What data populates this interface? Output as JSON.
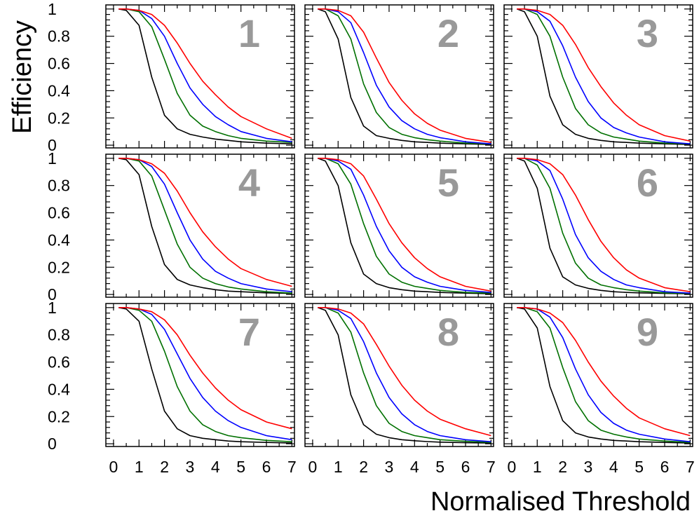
{
  "figure": {
    "ylabel": "Efficiency",
    "xlabel": "Normalised Threshold"
  },
  "style": {
    "series_colors": [
      "#000000",
      "#007000",
      "#0000ff",
      "#ff0000"
    ],
    "panel_number_color": "#999999",
    "axis_color": "#000000"
  },
  "chart_data": [
    {
      "type": "line",
      "panel_label": "1",
      "xlim": [
        -0.3,
        7.1
      ],
      "ylim": [
        -0.02,
        1.03
      ],
      "xticks": [
        0,
        1,
        2,
        3,
        4,
        5,
        6,
        7
      ],
      "yticks": [
        0,
        0.2,
        0.4,
        0.6,
        0.8,
        1
      ],
      "x": [
        0.2,
        0.5,
        1,
        1.5,
        2,
        2.5,
        3,
        3.5,
        4,
        4.5,
        5,
        6,
        7
      ],
      "series": [
        {
          "values": [
            1,
            0.99,
            0.88,
            0.5,
            0.22,
            0.12,
            0.08,
            0.06,
            0.045,
            0.035,
            0.025,
            0.015,
            0.01
          ]
        },
        {
          "values": [
            1,
            1,
            0.98,
            0.87,
            0.63,
            0.38,
            0.22,
            0.14,
            0.1,
            0.07,
            0.05,
            0.03,
            0.02
          ]
        },
        {
          "values": [
            1,
            1,
            0.99,
            0.93,
            0.8,
            0.6,
            0.42,
            0.3,
            0.21,
            0.15,
            0.1,
            0.05,
            0.025
          ]
        },
        {
          "values": [
            1,
            1,
            0.99,
            0.96,
            0.88,
            0.75,
            0.6,
            0.47,
            0.37,
            0.28,
            0.21,
            0.12,
            0.05
          ]
        }
      ]
    },
    {
      "type": "line",
      "panel_label": "2",
      "xlim": [
        -0.3,
        7.1
      ],
      "ylim": [
        -0.02,
        1.03
      ],
      "xticks": [
        0,
        1,
        2,
        3,
        4,
        5,
        6,
        7
      ],
      "yticks": [
        0,
        0.2,
        0.4,
        0.6,
        0.8,
        1
      ],
      "x": [
        0.2,
        0.5,
        1,
        1.5,
        2,
        2.5,
        3,
        3.5,
        4,
        4.5,
        5,
        6,
        7
      ],
      "series": [
        {
          "values": [
            1,
            0.98,
            0.78,
            0.35,
            0.14,
            0.07,
            0.05,
            0.035,
            0.025,
            0.02,
            0.015,
            0.01,
            0.005
          ]
        },
        {
          "values": [
            1,
            1,
            0.95,
            0.78,
            0.45,
            0.24,
            0.13,
            0.08,
            0.055,
            0.04,
            0.03,
            0.015,
            0.01
          ]
        },
        {
          "values": [
            1,
            1,
            0.98,
            0.9,
            0.68,
            0.44,
            0.28,
            0.18,
            0.12,
            0.08,
            0.055,
            0.025,
            0.01
          ]
        },
        {
          "values": [
            1,
            1,
            0.99,
            0.95,
            0.83,
            0.64,
            0.46,
            0.33,
            0.23,
            0.16,
            0.11,
            0.05,
            0.02
          ]
        }
      ]
    },
    {
      "type": "line",
      "panel_label": "3",
      "xlim": [
        -0.3,
        7.1
      ],
      "ylim": [
        -0.02,
        1.03
      ],
      "xticks": [
        0,
        1,
        2,
        3,
        4,
        5,
        6,
        7
      ],
      "yticks": [
        0,
        0.2,
        0.4,
        0.6,
        0.8,
        1
      ],
      "x": [
        0.2,
        0.5,
        1,
        1.5,
        2,
        2.5,
        3,
        3.5,
        4,
        4.5,
        5,
        6,
        7
      ],
      "series": [
        {
          "values": [
            1,
            0.98,
            0.8,
            0.36,
            0.15,
            0.08,
            0.05,
            0.035,
            0.025,
            0.02,
            0.015,
            0.01,
            0.005
          ]
        },
        {
          "values": [
            1,
            1,
            0.96,
            0.8,
            0.5,
            0.27,
            0.15,
            0.09,
            0.06,
            0.045,
            0.03,
            0.015,
            0.01
          ]
        },
        {
          "values": [
            1,
            1,
            0.98,
            0.91,
            0.73,
            0.5,
            0.32,
            0.2,
            0.13,
            0.09,
            0.06,
            0.025,
            0.01
          ]
        },
        {
          "values": [
            1,
            1,
            0.99,
            0.96,
            0.88,
            0.74,
            0.57,
            0.43,
            0.31,
            0.22,
            0.15,
            0.07,
            0.03
          ]
        }
      ]
    },
    {
      "type": "line",
      "panel_label": "4",
      "xlim": [
        -0.3,
        7.1
      ],
      "ylim": [
        -0.02,
        1.03
      ],
      "xticks": [
        0,
        1,
        2,
        3,
        4,
        5,
        6,
        7
      ],
      "yticks": [
        0,
        0.2,
        0.4,
        0.6,
        0.8,
        1
      ],
      "x": [
        0.2,
        0.5,
        1,
        1.5,
        2,
        2.5,
        3,
        3.5,
        4,
        4.5,
        5,
        6,
        7
      ],
      "series": [
        {
          "values": [
            1,
            0.99,
            0.88,
            0.5,
            0.22,
            0.11,
            0.07,
            0.05,
            0.035,
            0.025,
            0.02,
            0.012,
            0.008
          ]
        },
        {
          "values": [
            1,
            1,
            0.98,
            0.87,
            0.62,
            0.37,
            0.2,
            0.12,
            0.08,
            0.055,
            0.04,
            0.02,
            0.01
          ]
        },
        {
          "values": [
            1,
            1,
            0.99,
            0.94,
            0.81,
            0.6,
            0.4,
            0.26,
            0.17,
            0.12,
            0.08,
            0.04,
            0.02
          ]
        },
        {
          "values": [
            1,
            1,
            0.99,
            0.96,
            0.89,
            0.76,
            0.6,
            0.46,
            0.35,
            0.26,
            0.19,
            0.11,
            0.06
          ]
        }
      ]
    },
    {
      "type": "line",
      "panel_label": "5",
      "xlim": [
        -0.3,
        7.1
      ],
      "ylim": [
        -0.02,
        1.03
      ],
      "xticks": [
        0,
        1,
        2,
        3,
        4,
        5,
        6,
        7
      ],
      "yticks": [
        0,
        0.2,
        0.4,
        0.6,
        0.8,
        1
      ],
      "x": [
        0.2,
        0.5,
        1,
        1.5,
        2,
        2.5,
        3,
        3.5,
        4,
        4.5,
        5,
        6,
        7
      ],
      "series": [
        {
          "values": [
            1,
            0.98,
            0.8,
            0.38,
            0.15,
            0.08,
            0.05,
            0.035,
            0.025,
            0.02,
            0.015,
            0.01,
            0.005
          ]
        },
        {
          "values": [
            1,
            1,
            0.96,
            0.81,
            0.52,
            0.28,
            0.15,
            0.09,
            0.06,
            0.045,
            0.03,
            0.015,
            0.01
          ]
        },
        {
          "values": [
            1,
            1,
            0.98,
            0.92,
            0.73,
            0.5,
            0.32,
            0.2,
            0.13,
            0.09,
            0.06,
            0.03,
            0.015
          ]
        },
        {
          "values": [
            1,
            1,
            0.99,
            0.96,
            0.87,
            0.7,
            0.52,
            0.38,
            0.27,
            0.19,
            0.13,
            0.06,
            0.025
          ]
        }
      ]
    },
    {
      "type": "line",
      "panel_label": "6",
      "xlim": [
        -0.3,
        7.1
      ],
      "ylim": [
        -0.02,
        1.03
      ],
      "xticks": [
        0,
        1,
        2,
        3,
        4,
        5,
        6,
        7
      ],
      "yticks": [
        0,
        0.2,
        0.4,
        0.6,
        0.8,
        1
      ],
      "x": [
        0.2,
        0.5,
        1,
        1.5,
        2,
        2.5,
        3,
        3.5,
        4,
        4.5,
        5,
        6,
        7
      ],
      "series": [
        {
          "values": [
            1,
            0.98,
            0.78,
            0.34,
            0.13,
            0.07,
            0.045,
            0.03,
            0.02,
            0.015,
            0.012,
            0.008,
            0.005
          ]
        },
        {
          "values": [
            1,
            1,
            0.95,
            0.78,
            0.45,
            0.23,
            0.12,
            0.07,
            0.05,
            0.035,
            0.025,
            0.012,
            0.008
          ]
        },
        {
          "values": [
            1,
            1,
            0.98,
            0.91,
            0.7,
            0.44,
            0.27,
            0.17,
            0.11,
            0.07,
            0.05,
            0.02,
            0.01
          ]
        },
        {
          "values": [
            1,
            1,
            0.99,
            0.96,
            0.88,
            0.73,
            0.55,
            0.39,
            0.27,
            0.18,
            0.12,
            0.05,
            0.02
          ]
        }
      ]
    },
    {
      "type": "line",
      "panel_label": "7",
      "xlim": [
        -0.3,
        7.1
      ],
      "ylim": [
        -0.02,
        1.03
      ],
      "xticks": [
        0,
        1,
        2,
        3,
        4,
        5,
        6,
        7
      ],
      "yticks": [
        0,
        0.2,
        0.4,
        0.6,
        0.8,
        1
      ],
      "x": [
        0.2,
        0.5,
        1,
        1.5,
        2,
        2.5,
        3,
        3.5,
        4,
        4.5,
        5,
        6,
        7
      ],
      "series": [
        {
          "values": [
            1,
            0.99,
            0.9,
            0.55,
            0.24,
            0.11,
            0.06,
            0.04,
            0.03,
            0.02,
            0.015,
            0.01,
            0.005
          ]
        },
        {
          "values": [
            1,
            1,
            0.98,
            0.9,
            0.68,
            0.42,
            0.24,
            0.14,
            0.09,
            0.06,
            0.045,
            0.025,
            0.015
          ]
        },
        {
          "values": [
            1,
            1,
            0.99,
            0.95,
            0.84,
            0.66,
            0.48,
            0.34,
            0.24,
            0.17,
            0.12,
            0.06,
            0.03
          ]
        },
        {
          "values": [
            1,
            1,
            0.99,
            0.97,
            0.91,
            0.8,
            0.65,
            0.52,
            0.41,
            0.32,
            0.25,
            0.16,
            0.11
          ]
        }
      ]
    },
    {
      "type": "line",
      "panel_label": "8",
      "xlim": [
        -0.3,
        7.1
      ],
      "ylim": [
        -0.02,
        1.03
      ],
      "xticks": [
        0,
        1,
        2,
        3,
        4,
        5,
        6,
        7
      ],
      "yticks": [
        0,
        0.2,
        0.4,
        0.6,
        0.8,
        1
      ],
      "x": [
        0.2,
        0.5,
        1,
        1.5,
        2,
        2.5,
        3,
        3.5,
        4,
        4.5,
        5,
        6,
        7
      ],
      "series": [
        {
          "values": [
            1,
            0.98,
            0.8,
            0.36,
            0.14,
            0.07,
            0.045,
            0.03,
            0.022,
            0.016,
            0.012,
            0.008,
            0.005
          ]
        },
        {
          "values": [
            1,
            1,
            0.96,
            0.82,
            0.52,
            0.28,
            0.15,
            0.09,
            0.06,
            0.045,
            0.03,
            0.018,
            0.01
          ]
        },
        {
          "values": [
            1,
            1,
            0.98,
            0.92,
            0.75,
            0.52,
            0.34,
            0.22,
            0.14,
            0.09,
            0.06,
            0.03,
            0.015
          ]
        },
        {
          "values": [
            1,
            1,
            0.99,
            0.96,
            0.88,
            0.73,
            0.57,
            0.43,
            0.32,
            0.24,
            0.18,
            0.11,
            0.06
          ]
        }
      ]
    },
    {
      "type": "line",
      "panel_label": "9",
      "xlim": [
        -0.3,
        7.1
      ],
      "ylim": [
        -0.02,
        1.03
      ],
      "xticks": [
        0,
        1,
        2,
        3,
        4,
        5,
        6,
        7
      ],
      "yticks": [
        0,
        0.2,
        0.4,
        0.6,
        0.8,
        1
      ],
      "x": [
        0.2,
        0.5,
        1,
        1.5,
        2,
        2.5,
        3,
        3.5,
        4,
        4.5,
        5,
        6,
        7
      ],
      "series": [
        {
          "values": [
            1,
            0.99,
            0.85,
            0.42,
            0.17,
            0.08,
            0.05,
            0.035,
            0.025,
            0.02,
            0.015,
            0.01,
            0.005
          ]
        },
        {
          "values": [
            1,
            1,
            0.97,
            0.85,
            0.56,
            0.31,
            0.17,
            0.1,
            0.07,
            0.05,
            0.035,
            0.02,
            0.01
          ]
        },
        {
          "values": [
            1,
            1,
            0.99,
            0.93,
            0.78,
            0.55,
            0.36,
            0.23,
            0.15,
            0.1,
            0.07,
            0.035,
            0.015
          ]
        },
        {
          "values": [
            1,
            1,
            0.99,
            0.96,
            0.89,
            0.76,
            0.6,
            0.46,
            0.35,
            0.26,
            0.19,
            0.11,
            0.06
          ]
        }
      ]
    }
  ]
}
